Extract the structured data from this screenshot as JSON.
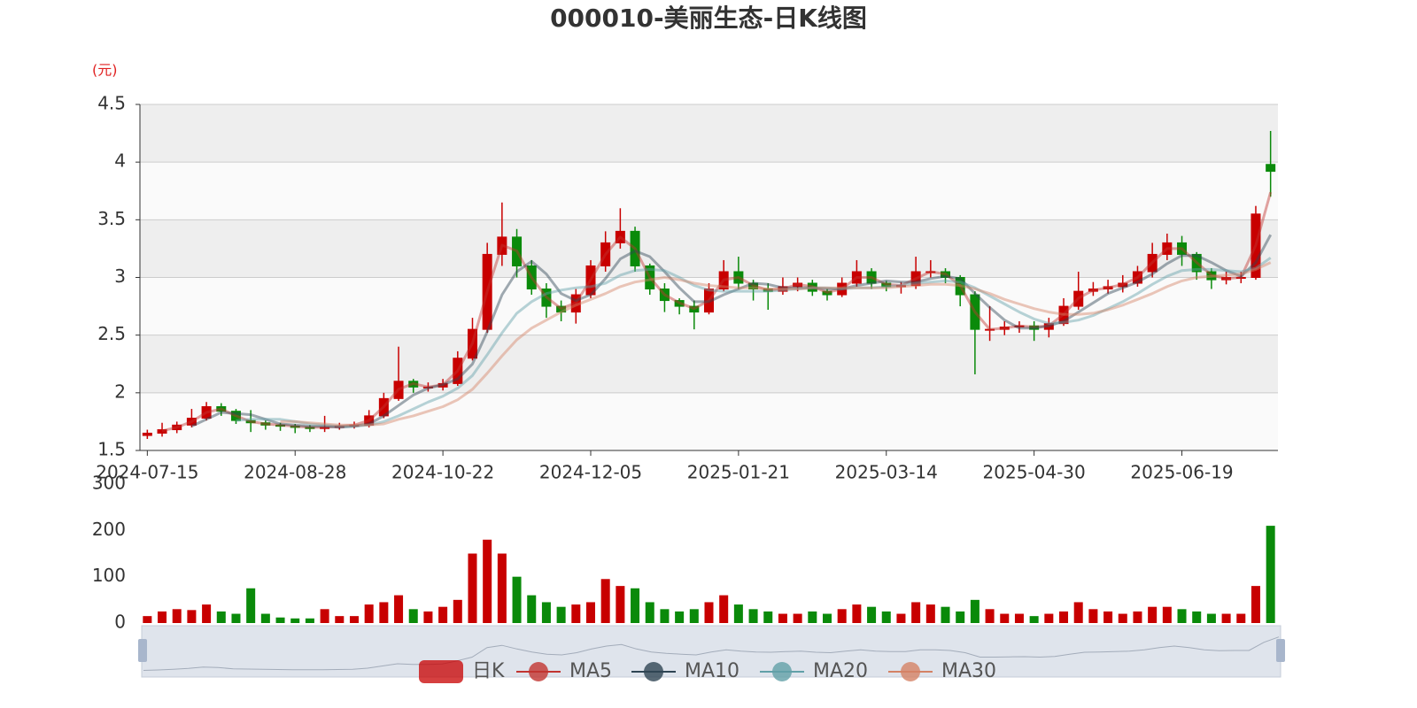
{
  "chart_data": [
    {
      "type": "candlestick",
      "title": "000010-美丽生态-日K线图",
      "y_unit": "(元)",
      "candle_name": "日K",
      "up_color": "#c80000",
      "down_color": "#0a8a0a",
      "categories": [
        "2024-07-15",
        null,
        null,
        null,
        null,
        null,
        null,
        null,
        null,
        null,
        "2024-08-28",
        null,
        null,
        null,
        null,
        null,
        null,
        null,
        null,
        null,
        "2024-10-22",
        null,
        null,
        null,
        null,
        null,
        null,
        null,
        null,
        null,
        "2024-12-05",
        null,
        null,
        null,
        null,
        null,
        null,
        null,
        null,
        null,
        "2025-01-21",
        null,
        null,
        null,
        null,
        null,
        null,
        null,
        null,
        null,
        "2025-03-14",
        null,
        null,
        null,
        null,
        null,
        null,
        null,
        null,
        null,
        "2025-04-30",
        null,
        null,
        null,
        null,
        null,
        null,
        null,
        null,
        null,
        "2025-06-19",
        null,
        null,
        null,
        null,
        null,
        null
      ],
      "ohlc": [
        [
          1.63,
          1.65,
          1.6,
          1.68
        ],
        [
          1.65,
          1.68,
          1.62,
          1.74
        ],
        [
          1.68,
          1.72,
          1.65,
          1.75
        ],
        [
          1.72,
          1.78,
          1.7,
          1.86
        ],
        [
          1.78,
          1.88,
          1.76,
          1.92
        ],
        [
          1.88,
          1.84,
          1.8,
          1.91
        ],
        [
          1.84,
          1.76,
          1.73,
          1.86
        ],
        [
          1.76,
          1.74,
          1.66,
          1.85
        ],
        [
          1.74,
          1.72,
          1.68,
          1.76
        ],
        [
          1.72,
          1.71,
          1.67,
          1.74
        ],
        [
          1.71,
          1.7,
          1.65,
          1.73
        ],
        [
          1.7,
          1.69,
          1.66,
          1.72
        ],
        [
          1.69,
          1.7,
          1.66,
          1.8
        ],
        [
          1.7,
          1.71,
          1.68,
          1.74
        ],
        [
          1.71,
          1.72,
          1.69,
          1.75
        ],
        [
          1.72,
          1.8,
          1.7,
          1.85
        ],
        [
          1.8,
          1.95,
          1.78,
          2.0
        ],
        [
          1.95,
          2.1,
          1.93,
          2.4
        ],
        [
          2.1,
          2.05,
          2.0,
          2.12
        ],
        [
          2.05,
          2.05,
          2.01,
          2.09
        ],
        [
          2.05,
          2.08,
          2.02,
          2.12
        ],
        [
          2.08,
          2.3,
          2.06,
          2.36
        ],
        [
          2.3,
          2.55,
          2.28,
          2.65
        ],
        [
          2.55,
          3.2,
          2.52,
          3.3
        ],
        [
          3.2,
          3.35,
          3.1,
          3.65
        ],
        [
          3.35,
          3.1,
          3.0,
          3.42
        ],
        [
          3.1,
          2.9,
          2.85,
          3.15
        ],
        [
          2.9,
          2.75,
          2.65,
          2.95
        ],
        [
          2.75,
          2.7,
          2.62,
          2.8
        ],
        [
          2.7,
          2.85,
          2.6,
          2.9
        ],
        [
          2.85,
          3.1,
          2.82,
          3.15
        ],
        [
          3.1,
          3.3,
          3.05,
          3.4
        ],
        [
          3.3,
          3.4,
          3.25,
          3.6
        ],
        [
          3.4,
          3.1,
          3.05,
          3.44
        ],
        [
          3.1,
          2.9,
          2.85,
          3.12
        ],
        [
          2.9,
          2.8,
          2.7,
          2.95
        ],
        [
          2.8,
          2.75,
          2.68,
          2.82
        ],
        [
          2.75,
          2.7,
          2.55,
          2.8
        ],
        [
          2.7,
          2.9,
          2.68,
          2.95
        ],
        [
          2.9,
          3.05,
          2.88,
          3.15
        ],
        [
          3.05,
          2.95,
          2.9,
          3.18
        ],
        [
          2.95,
          2.9,
          2.8,
          2.98
        ],
        [
          2.9,
          2.88,
          2.72,
          2.95
        ],
        [
          2.88,
          2.92,
          2.85,
          3.0
        ],
        [
          2.92,
          2.95,
          2.88,
          3.0
        ],
        [
          2.95,
          2.88,
          2.84,
          2.98
        ],
        [
          2.88,
          2.85,
          2.8,
          2.9
        ],
        [
          2.85,
          2.95,
          2.83,
          3.0
        ],
        [
          2.95,
          3.05,
          2.92,
          3.15
        ],
        [
          3.05,
          2.95,
          2.9,
          3.08
        ],
        [
          2.95,
          2.92,
          2.88,
          2.97
        ],
        [
          2.92,
          2.93,
          2.86,
          2.96
        ],
        [
          2.93,
          3.05,
          2.9,
          3.18
        ],
        [
          3.05,
          3.05,
          3.0,
          3.15
        ],
        [
          3.05,
          3.0,
          2.95,
          3.08
        ],
        [
          3.0,
          2.85,
          2.75,
          3.02
        ],
        [
          2.85,
          2.55,
          2.16,
          2.88
        ],
        [
          2.55,
          2.55,
          2.45,
          2.75
        ],
        [
          2.55,
          2.57,
          2.5,
          2.62
        ],
        [
          2.57,
          2.58,
          2.52,
          2.62
        ],
        [
          2.58,
          2.55,
          2.45,
          2.62
        ],
        [
          2.55,
          2.6,
          2.48,
          2.65
        ],
        [
          2.6,
          2.75,
          2.58,
          2.82
        ],
        [
          2.75,
          2.88,
          2.72,
          3.05
        ],
        [
          2.88,
          2.9,
          2.84,
          2.96
        ],
        [
          2.9,
          2.92,
          2.86,
          2.98
        ],
        [
          2.92,
          2.95,
          2.87,
          3.02
        ],
        [
          2.95,
          3.05,
          2.92,
          3.1
        ],
        [
          3.05,
          3.2,
          3.0,
          3.3
        ],
        [
          3.2,
          3.3,
          3.15,
          3.38
        ],
        [
          3.3,
          3.2,
          3.1,
          3.36
        ],
        [
          3.2,
          3.05,
          2.98,
          3.22
        ],
        [
          3.05,
          2.98,
          2.9,
          3.08
        ],
        [
          2.98,
          3.0,
          2.94,
          3.05
        ],
        [
          3.0,
          3.0,
          2.95,
          3.05
        ],
        [
          3.0,
          3.55,
          2.98,
          3.62
        ],
        [
          3.98,
          3.92,
          3.7,
          4.27
        ]
      ],
      "series": [
        {
          "name": "MA5",
          "color": "#c23531",
          "values": [
            null,
            1.67,
            1.7,
            1.75,
            1.83,
            1.86,
            1.8,
            1.75,
            1.73,
            1.72,
            1.71,
            1.7,
            1.7,
            1.71,
            1.72,
            1.76,
            1.88,
            2.03,
            2.08,
            2.05,
            2.07,
            2.19,
            2.43,
            2.88,
            3.28,
            3.23,
            3.0,
            2.83,
            2.73,
            2.78,
            2.98,
            3.2,
            3.35,
            3.25,
            3.0,
            2.85,
            2.78,
            2.73,
            2.8,
            2.98,
            3.0,
            2.93,
            2.89,
            2.9,
            2.94,
            2.92,
            2.87,
            2.9,
            3.0,
            3.0,
            2.94,
            2.93,
            2.99,
            3.05,
            3.03,
            2.93,
            2.7,
            2.55,
            2.56,
            2.58,
            2.57,
            2.58,
            2.68,
            2.82,
            2.89,
            2.91,
            2.94,
            3.0,
            3.13,
            3.25,
            3.25,
            3.13,
            3.02,
            2.99,
            3.0,
            3.28,
            3.74
          ]
        },
        {
          "name": "MA10",
          "color": "#2f4554",
          "values": [
            null,
            null,
            null,
            1.71,
            1.77,
            1.83,
            1.82,
            1.81,
            1.77,
            1.73,
            1.72,
            1.71,
            1.71,
            1.7,
            1.71,
            1.73,
            1.8,
            1.89,
            1.98,
            2.04,
            2.07,
            2.12,
            2.25,
            2.53,
            2.85,
            3.05,
            3.14,
            3.03,
            2.86,
            2.8,
            2.85,
            2.99,
            3.16,
            3.23,
            3.18,
            3.05,
            2.91,
            2.79,
            2.79,
            2.85,
            2.9,
            2.95,
            2.94,
            2.91,
            2.91,
            2.91,
            2.9,
            2.9,
            2.93,
            2.95,
            2.97,
            2.96,
            2.96,
            2.99,
            3.01,
            2.99,
            2.86,
            2.74,
            2.63,
            2.56,
            2.56,
            2.58,
            2.62,
            2.7,
            2.78,
            2.86,
            2.91,
            2.96,
            3.03,
            3.12,
            3.19,
            3.19,
            3.13,
            3.06,
            3.01,
            3.13,
            3.37
          ]
        },
        {
          "name": "MA20",
          "color": "#61a0a8",
          "values": [
            null,
            null,
            null,
            null,
            null,
            null,
            1.76,
            1.77,
            1.77,
            1.77,
            1.75,
            1.73,
            1.72,
            1.71,
            1.71,
            1.72,
            1.75,
            1.8,
            1.86,
            1.92,
            1.97,
            2.04,
            2.15,
            2.33,
            2.52,
            2.69,
            2.79,
            2.86,
            2.89,
            2.91,
            2.92,
            2.95,
            3.02,
            3.06,
            3.07,
            3.06,
            3.0,
            2.93,
            2.89,
            2.88,
            2.88,
            2.88,
            2.88,
            2.89,
            2.9,
            2.91,
            2.91,
            2.9,
            2.91,
            2.91,
            2.92,
            2.93,
            2.95,
            2.96,
            2.97,
            2.96,
            2.91,
            2.84,
            2.77,
            2.7,
            2.64,
            2.6,
            2.61,
            2.63,
            2.67,
            2.73,
            2.79,
            2.86,
            2.94,
            3.01,
            3.06,
            3.07,
            3.07,
            3.06,
            3.05,
            3.08,
            3.17
          ]
        },
        {
          "name": "MA30",
          "color": "#d48265",
          "values": [
            null,
            null,
            null,
            null,
            null,
            null,
            null,
            null,
            null,
            1.75,
            1.75,
            1.74,
            1.73,
            1.72,
            1.72,
            1.72,
            1.73,
            1.77,
            1.8,
            1.84,
            1.88,
            1.94,
            2.03,
            2.17,
            2.32,
            2.46,
            2.56,
            2.63,
            2.7,
            2.76,
            2.81,
            2.86,
            2.92,
            2.96,
            2.98,
            3.0,
            2.98,
            2.95,
            2.93,
            2.92,
            2.91,
            2.91,
            2.9,
            2.9,
            2.9,
            2.91,
            2.91,
            2.91,
            2.91,
            2.91,
            2.91,
            2.92,
            2.93,
            2.94,
            2.94,
            2.93,
            2.9,
            2.86,
            2.81,
            2.77,
            2.73,
            2.7,
            2.68,
            2.68,
            2.69,
            2.72,
            2.76,
            2.81,
            2.86,
            2.92,
            2.97,
            3.0,
            3.01,
            3.02,
            3.03,
            3.07,
            3.13
          ]
        }
      ],
      "ylim": [
        1.5,
        4.5
      ],
      "yticks": [
        1.5,
        2,
        2.5,
        3,
        3.5,
        4,
        4.5
      ],
      "grid": true
    },
    {
      "type": "bar",
      "values": [
        15,
        25,
        30,
        28,
        40,
        25,
        20,
        75,
        20,
        12,
        10,
        10,
        30,
        15,
        15,
        40,
        45,
        60,
        30,
        25,
        35,
        50,
        150,
        180,
        150,
        100,
        60,
        45,
        35,
        40,
        45,
        95,
        80,
        75,
        45,
        30,
        25,
        30,
        45,
        60,
        40,
        30,
        25,
        20,
        20,
        25,
        20,
        30,
        40,
        35,
        25,
        20,
        45,
        40,
        35,
        25,
        50,
        30,
        20,
        20,
        15,
        20,
        25,
        45,
        30,
        25,
        20,
        25,
        35,
        35,
        30,
        25,
        20,
        20,
        20,
        80,
        210
      ],
      "ylim": [
        0,
        300
      ],
      "yticks": [
        0,
        100,
        200,
        300
      ]
    }
  ]
}
